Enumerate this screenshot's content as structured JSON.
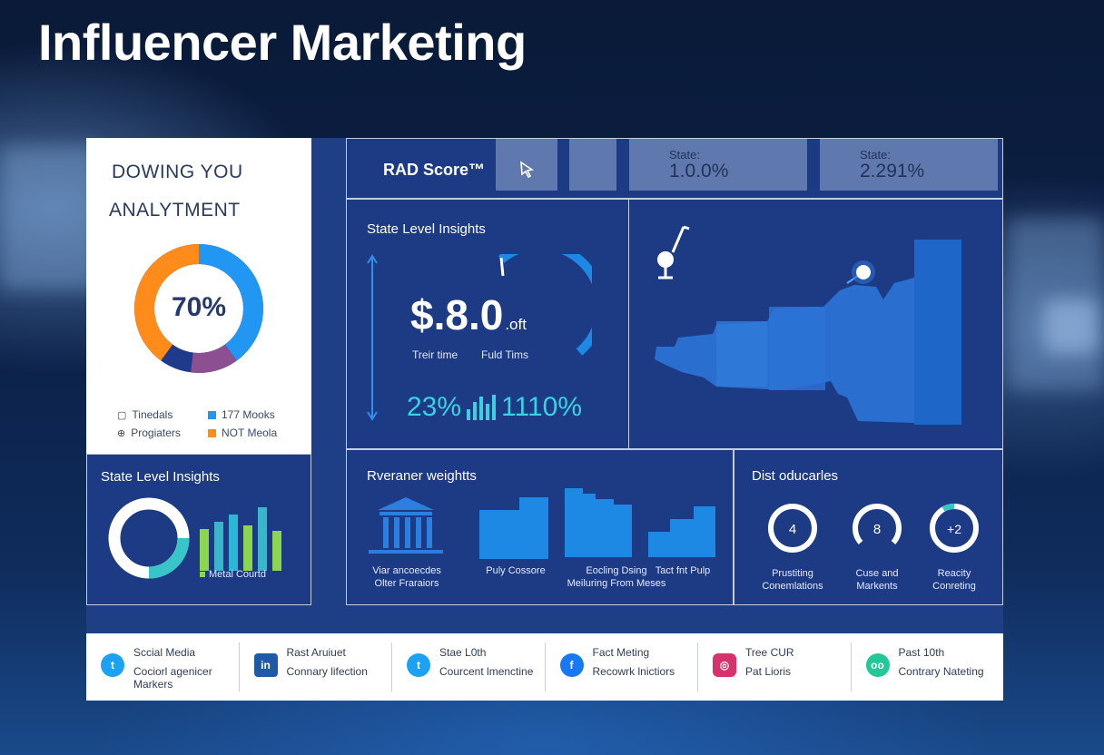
{
  "page": {
    "title": "Influencer Marketing"
  },
  "left_card": {
    "heading_1": "DOWING YOU",
    "heading_2": "ANALYTMENT",
    "donut_value": "70%",
    "legend": [
      {
        "label": "Tinedals",
        "icon": "chat-icon"
      },
      {
        "label": "177 Mooks",
        "color": "#2196f3"
      },
      {
        "label": "Progiaters",
        "icon": "compass-icon"
      },
      {
        "label": "NOT Meola",
        "color": "#ff8c1a"
      }
    ],
    "colors": {
      "blue": "#2196f3",
      "orange": "#ff8c1a",
      "purple": "#8c4f8f",
      "navy": "#1f3a8a"
    }
  },
  "header": {
    "score_label": "RAD Score™",
    "tiles": [
      {
        "caption": "State:",
        "value": "1.0.0%"
      },
      {
        "caption": "State:",
        "value": "2.291%"
      }
    ]
  },
  "insights": {
    "title": "State Level Insights",
    "big_value": "$.8.0",
    "big_unit": ".oft",
    "label_left": "Treir time",
    "label_right": "Fuld Tims",
    "pct_left": "23%",
    "pct_right": "1110%"
  },
  "state2": {
    "title": "State Level Insights",
    "legend_label": "Metal Courtd"
  },
  "revenue": {
    "title": "Rveraner weightts",
    "items": [
      {
        "line1": "Viar ancoecdes",
        "line2": "Olter Fraraiors"
      },
      {
        "line1": "Puly Cossore",
        "line2": ""
      },
      {
        "line1": "Eocling Dsing",
        "line2": "Meiluring From Meses"
      },
      {
        "line1": "Tact fnt Pulp",
        "line2": ""
      }
    ]
  },
  "dist": {
    "title": "Dist oducarles",
    "rings": [
      {
        "value": "4",
        "line1": "Prustiting",
        "line2": "Conemlations"
      },
      {
        "value": "8",
        "line1": "Cuse and",
        "line2": "Markents"
      },
      {
        "value": "+2",
        "line1": "Reacity",
        "line2": "Conreting"
      }
    ]
  },
  "social": [
    {
      "icon": "twitter-icon",
      "color": "#1da1f2",
      "glyph": "t",
      "line1": "Sccial Media",
      "line2": "Cociorl agenicer Markers"
    },
    {
      "icon": "linkedin-icon",
      "color": "#1e5aa8",
      "glyph": "in",
      "line1": "Rast Aruiuet",
      "line2": "Connary lifection"
    },
    {
      "icon": "twitter-icon",
      "color": "#1da1f2",
      "glyph": "t",
      "line1": "Stae L0th",
      "line2": "Courcent lmenctine"
    },
    {
      "icon": "facebook-icon",
      "color": "#1877f2",
      "glyph": "f",
      "line1": "Fact Meting",
      "line2": "Recowrk lnictiors"
    },
    {
      "icon": "instagram-icon",
      "color": "#d6336c",
      "glyph": "◎",
      "line1": "Tree CUR",
      "line2": "Pat Lioris"
    },
    {
      "icon": "tripadvisor-icon",
      "color": "#20c997",
      "glyph": "oo",
      "line1": "Past 10th",
      "line2": "Contrary Nateting"
    }
  ]
}
